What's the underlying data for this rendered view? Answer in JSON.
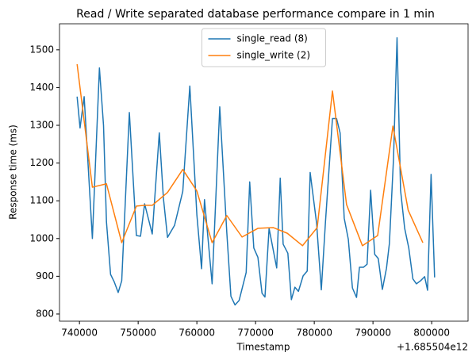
{
  "chart_data": {
    "type": "line",
    "title": "Read / Write separated database performance compare in 1 min",
    "x_label": "Timestamp",
    "y_label": "Response time (ms)",
    "x_offset_label": "+1.685504e12",
    "series": [
      {
        "name": "single_read (8)",
        "color": "#1f77b4",
        "x": [
          1685504739600,
          1685504740100,
          1685504740800,
          1685504742200,
          1685504743400,
          1685504744100,
          1685504744600,
          1685504745300,
          1685504745900,
          1685504746600,
          1685504747200,
          1685504748500,
          1685504749700,
          1685504750400,
          1685504751100,
          1685504752400,
          1685504753600,
          1685504754300,
          1685504755000,
          1685504756200,
          1685504757600,
          1685504758800,
          1685504760000,
          1685504760800,
          1685504761300,
          1685504762600,
          1685504763900,
          1685504765100,
          1685504765800,
          1685504766500,
          1685504767200,
          1685504768400,
          1685504769000,
          1685504769700,
          1685504770400,
          1685504771100,
          1685504771600,
          1685504772300,
          1685504773600,
          1685504774200,
          1685504774700,
          1685504775500,
          1685504776100,
          1685504776700,
          1685504777300,
          1685504778100,
          1685504778800,
          1685504779300,
          1685504780400,
          1685504781200,
          1685504781900,
          1685504783100,
          1685504783800,
          1685504784400,
          1685504785100,
          1685504785800,
          1685504786500,
          1685504787200,
          1685504787700,
          1685504788400,
          1685504789000,
          1685504789600,
          1685504790300,
          1685504790900,
          1685504791600,
          1685504792300,
          1685504792800,
          1685504793500,
          1685504794100,
          1685504794700,
          1685504795400,
          1685504796100,
          1685504796800,
          1685504797400,
          1685504798100,
          1685504798800,
          1685504799300,
          1685504799900,
          1685504800500
        ],
        "values": [
          1376,
          1293,
          1376,
          1000,
          1452,
          1300,
          1044,
          905,
          886,
          857,
          888,
          1334,
          1008,
          1006,
          1092,
          1012,
          1280,
          1107,
          1003,
          1035,
          1125,
          1404,
          1063,
          920,
          1103,
          880,
          1349,
          1016,
          847,
          824,
          836,
          910,
          1150,
          975,
          950,
          855,
          845,
          1027,
          922,
          1160,
          985,
          961,
          838,
          871,
          860,
          901,
          914,
          1175,
          1040,
          864,
          1042,
          1318,
          1318,
          1280,
          1054,
          998,
          869,
          844,
          924,
          924,
          932,
          1128,
          958,
          947,
          865,
          921,
          987,
          1212,
          1532,
          1128,
          1027,
          975,
          893,
          880,
          888,
          899,
          863,
          1170,
          897
        ]
      },
      {
        "name": "single_write (2)",
        "color": "#ff7f0e",
        "x": [
          1685504739600,
          1685504742200,
          1685504744600,
          1685504747200,
          1685504749700,
          1685504751100,
          1685504752400,
          1685504755000,
          1685504757600,
          1685504760000,
          1685504762600,
          1685504765100,
          1685504767700,
          1685504770400,
          1685504773000,
          1685504775400,
          1685504778000,
          1685504780500,
          1685504783100,
          1685504785500,
          1685504788200,
          1685504790800,
          1685504793400,
          1685504796000,
          1685504798500
        ],
        "values": [
          1462,
          1136,
          1145,
          989,
          1086,
          1088,
          1088,
          1122,
          1183,
          1126,
          989,
          1061,
          1004,
          1027,
          1029,
          1014,
          981,
          1029,
          1391,
          1090,
          981,
          1008,
          1298,
          1075,
          989
        ]
      }
    ],
    "xlim": [
      1685504736600,
      1685504806200
    ],
    "xticks": [
      {
        "value": 1685504740000,
        "label": "740000"
      },
      {
        "value": 1685504750000,
        "label": "750000"
      },
      {
        "value": 1685504760000,
        "label": "760000"
      },
      {
        "value": 1685504770000,
        "label": "770000"
      },
      {
        "value": 1685504780000,
        "label": "780000"
      },
      {
        "value": 1685504790000,
        "label": "790000"
      },
      {
        "value": 1685504800000,
        "label": "800000"
      }
    ],
    "ylim": [
      781,
      1569
    ],
    "yticks": [
      800,
      900,
      1000,
      1100,
      1200,
      1300,
      1400,
      1500
    ],
    "legend": "upper center"
  }
}
